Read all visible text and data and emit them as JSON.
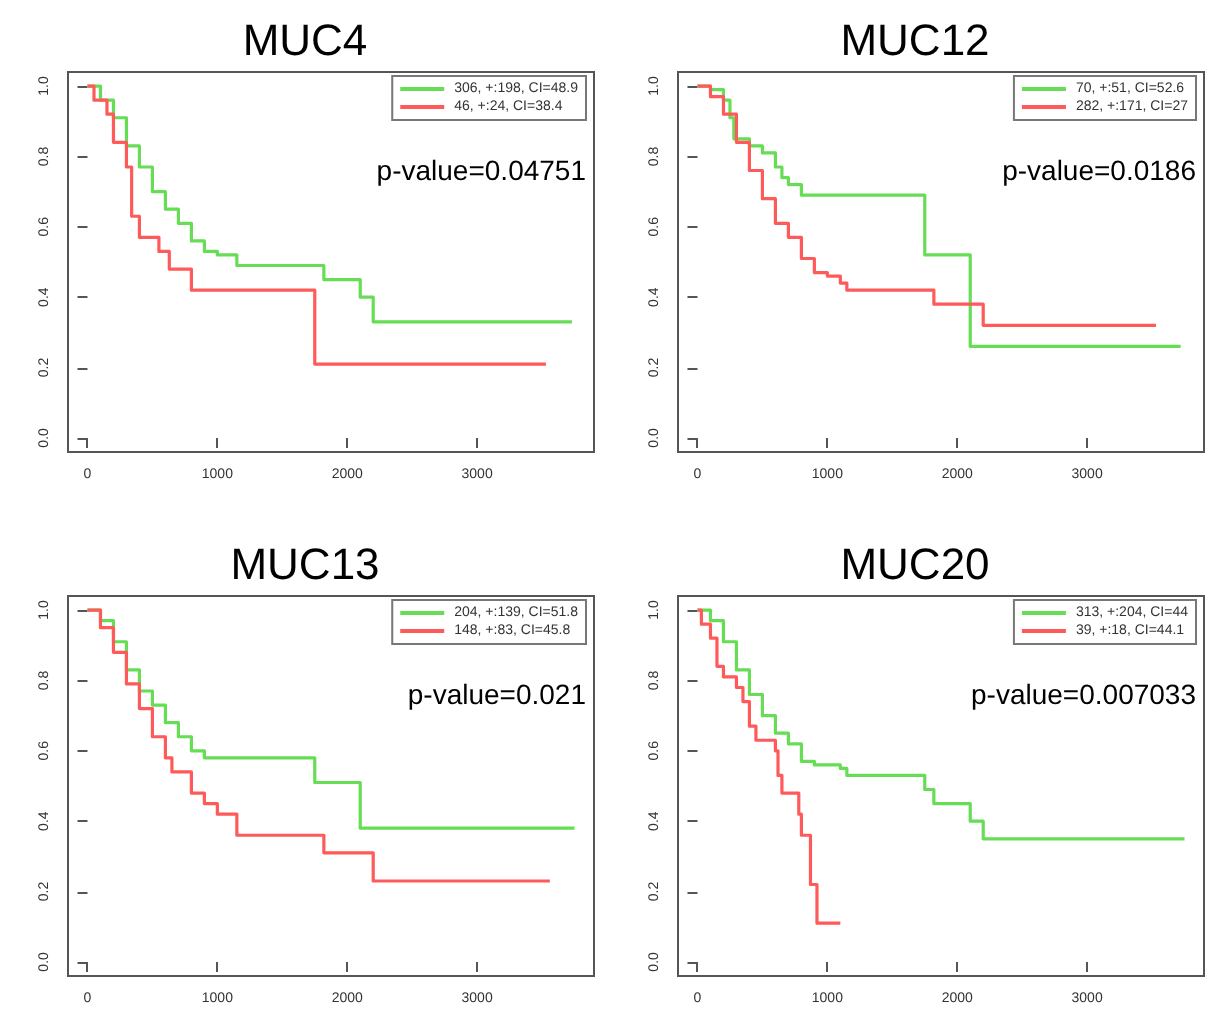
{
  "chart_data": [
    {
      "type": "step",
      "title": "MUC4",
      "xlim": [
        -150,
        3900
      ],
      "xticks": [
        0,
        1000,
        2000,
        3000
      ],
      "ylim": [
        -0.04,
        1.04
      ],
      "yticks": [
        {
          "value": 0,
          "label": "0.0"
        },
        {
          "value": 0.2,
          "label": "0.2"
        },
        {
          "value": 0.4,
          "label": "0.4"
        },
        {
          "value": 0.6,
          "label": "0.6"
        },
        {
          "value": 0.8,
          "label": "0.8"
        },
        {
          "value": 1,
          "label": "1.0"
        }
      ],
      "legend": "top right",
      "marker": "none",
      "line_style": "solid",
      "grid": false,
      "annotations": [
        "p-value=0.04751"
      ],
      "series": [
        {
          "name": "306, +:198, CI=48.9",
          "color": "#66dd55",
          "x": [
            0,
            100,
            200,
            300,
            400,
            500,
            600,
            700,
            800,
            900,
            1000,
            1150,
            1820,
            2100,
            2200,
            3730
          ],
          "values": [
            1,
            0.96,
            0.91,
            0.83,
            0.77,
            0.7,
            0.65,
            0.61,
            0.56,
            0.53,
            0.52,
            0.49,
            0.45,
            0.4,
            0.33,
            0.33
          ]
        },
        {
          "name": "46, +:24, CI=38.4",
          "color": "#ff5a5a",
          "x": [
            0,
            50,
            150,
            200,
            300,
            340,
            400,
            550,
            630,
            800,
            1750,
            3530
          ],
          "values": [
            1,
            0.96,
            0.92,
            0.84,
            0.77,
            0.63,
            0.57,
            0.53,
            0.48,
            0.42,
            0.21,
            0.21
          ]
        }
      ]
    },
    {
      "type": "step",
      "title": "MUC12",
      "xlim": [
        -150,
        3900
      ],
      "xticks": [
        0,
        1000,
        2000,
        3000
      ],
      "ylim": [
        -0.04,
        1.04
      ],
      "yticks": [
        {
          "value": 0,
          "label": "0.0"
        },
        {
          "value": 0.2,
          "label": "0.2"
        },
        {
          "value": 0.4,
          "label": "0.4"
        },
        {
          "value": 0.6,
          "label": "0.6"
        },
        {
          "value": 0.8,
          "label": "0.8"
        },
        {
          "value": 1,
          "label": "1.0"
        }
      ],
      "legend": "top right",
      "marker": "none",
      "line_style": "solid",
      "grid": false,
      "annotations": [
        "p-value=0.0186"
      ],
      "series": [
        {
          "name": "70, +:51, CI=52.6",
          "color": "#66dd55",
          "x": [
            0,
            100,
            200,
            250,
            280,
            400,
            500,
            600,
            650,
            700,
            800,
            1750,
            2100,
            3720
          ],
          "values": [
            1,
            0.99,
            0.96,
            0.91,
            0.85,
            0.83,
            0.81,
            0.77,
            0.74,
            0.72,
            0.69,
            0.52,
            0.26,
            0.26
          ]
        },
        {
          "name": "282, +:171, CI=27",
          "color": "#ff5a5a",
          "x": [
            0,
            100,
            200,
            300,
            400,
            500,
            600,
            700,
            800,
            900,
            1000,
            1100,
            1150,
            1820,
            2200,
            3530
          ],
          "values": [
            1,
            0.97,
            0.92,
            0.84,
            0.76,
            0.68,
            0.61,
            0.57,
            0.51,
            0.47,
            0.46,
            0.44,
            0.42,
            0.38,
            0.32,
            0.32
          ]
        }
      ]
    },
    {
      "type": "step",
      "title": "MUC13",
      "xlim": [
        -150,
        3900
      ],
      "xticks": [
        0,
        1000,
        2000,
        3000
      ],
      "ylim": [
        -0.04,
        1.04
      ],
      "yticks": [
        {
          "value": 0,
          "label": "0.0"
        },
        {
          "value": 0.2,
          "label": "0.2"
        },
        {
          "value": 0.4,
          "label": "0.4"
        },
        {
          "value": 0.6,
          "label": "0.6"
        },
        {
          "value": 0.8,
          "label": "0.8"
        },
        {
          "value": 1,
          "label": "1.0"
        }
      ],
      "legend": "top right",
      "marker": "none",
      "line_style": "solid",
      "grid": false,
      "annotations": [
        "p-value=0.021"
      ],
      "series": [
        {
          "name": "204, +:139, CI=51.8",
          "color": "#66dd55",
          "x": [
            0,
            100,
            200,
            300,
            400,
            500,
            600,
            700,
            800,
            900,
            1750,
            2100,
            3750
          ],
          "values": [
            1,
            0.97,
            0.91,
            0.83,
            0.77,
            0.73,
            0.68,
            0.64,
            0.6,
            0.58,
            0.51,
            0.38,
            0.38
          ]
        },
        {
          "name": "148, +:83, CI=45.8",
          "color": "#ff5a5a",
          "x": [
            0,
            100,
            200,
            300,
            400,
            500,
            600,
            650,
            800,
            900,
            1000,
            1150,
            1820,
            2200,
            3560
          ],
          "values": [
            1,
            0.95,
            0.88,
            0.79,
            0.72,
            0.64,
            0.58,
            0.54,
            0.48,
            0.45,
            0.42,
            0.36,
            0.31,
            0.23,
            0.23
          ]
        }
      ]
    },
    {
      "type": "step",
      "title": "MUC20",
      "xlim": [
        -150,
        3900
      ],
      "xticks": [
        0,
        1000,
        2000,
        3000
      ],
      "ylim": [
        -0.04,
        1.04
      ],
      "yticks": [
        {
          "value": 0,
          "label": "0.0"
        },
        {
          "value": 0.2,
          "label": "0.2"
        },
        {
          "value": 0.4,
          "label": "0.4"
        },
        {
          "value": 0.6,
          "label": "0.6"
        },
        {
          "value": 0.8,
          "label": "0.8"
        },
        {
          "value": 1,
          "label": "1.0"
        }
      ],
      "legend": "top right",
      "marker": "none",
      "line_style": "solid",
      "grid": false,
      "annotations": [
        "p-value=0.007033"
      ],
      "series": [
        {
          "name": "313, +:204, CI=44",
          "color": "#66dd55",
          "x": [
            0,
            100,
            200,
            300,
            400,
            500,
            600,
            700,
            800,
            900,
            1100,
            1150,
            1750,
            1820,
            2100,
            2200,
            3750
          ],
          "values": [
            1,
            0.97,
            0.91,
            0.83,
            0.76,
            0.7,
            0.65,
            0.62,
            0.57,
            0.56,
            0.55,
            0.53,
            0.49,
            0.45,
            0.4,
            0.35,
            0.35
          ]
        },
        {
          "name": "39, +:18, CI=44.1",
          "color": "#ff5a5a",
          "x": [
            0,
            30,
            100,
            150,
            200,
            300,
            350,
            400,
            450,
            600,
            620,
            650,
            780,
            800,
            870,
            920,
            1100
          ],
          "values": [
            1,
            0.96,
            0.92,
            0.84,
            0.81,
            0.78,
            0.74,
            0.67,
            0.63,
            0.6,
            0.53,
            0.48,
            0.42,
            0.36,
            0.22,
            0.11,
            0.11
          ]
        }
      ]
    }
  ]
}
